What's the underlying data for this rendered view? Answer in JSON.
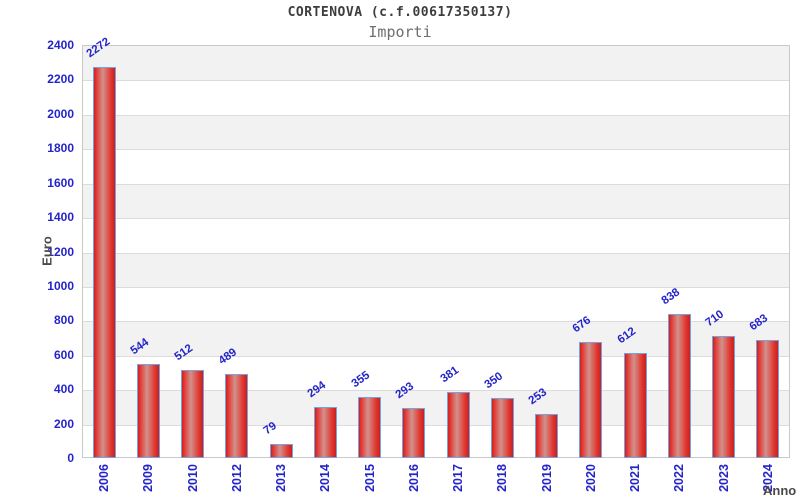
{
  "header": {
    "title": "CORTENOVA (c.f.00617350137)",
    "subtitle": "Importi"
  },
  "chart_data": {
    "type": "bar",
    "title": "CORTENOVA (c.f.00617350137)",
    "subtitle": "Importi",
    "xlabel": "Anno",
    "ylabel": "Euro",
    "categories": [
      "2006",
      "2009",
      "2010",
      "2012",
      "2013",
      "2014",
      "2015",
      "2016",
      "2017",
      "2018",
      "2019",
      "2020",
      "2021",
      "2022",
      "2023",
      "2024"
    ],
    "values": [
      2272,
      544,
      512,
      489,
      79,
      294,
      355,
      293,
      381,
      350,
      253,
      676,
      612,
      838,
      710,
      683
    ],
    "ylim": [
      0,
      2400
    ],
    "ytick_step": 200,
    "grid": "horizontal-bands",
    "legend_position": "none",
    "colors": {
      "label_blue": "#2424c8",
      "bar_red": "#e03830",
      "bar_highlight": "#d2918c",
      "bar_border_blue": "#74a3df",
      "band_gray": "#f2f2f2",
      "band_white": "#ffffff",
      "grid_line": "#dcdcdc",
      "plot_border": "#c9c9c9",
      "title_gray": "#3d3d3d",
      "subtitle_gray": "#6f6f6f",
      "axis_title_gray": "#4a4a4a"
    }
  }
}
